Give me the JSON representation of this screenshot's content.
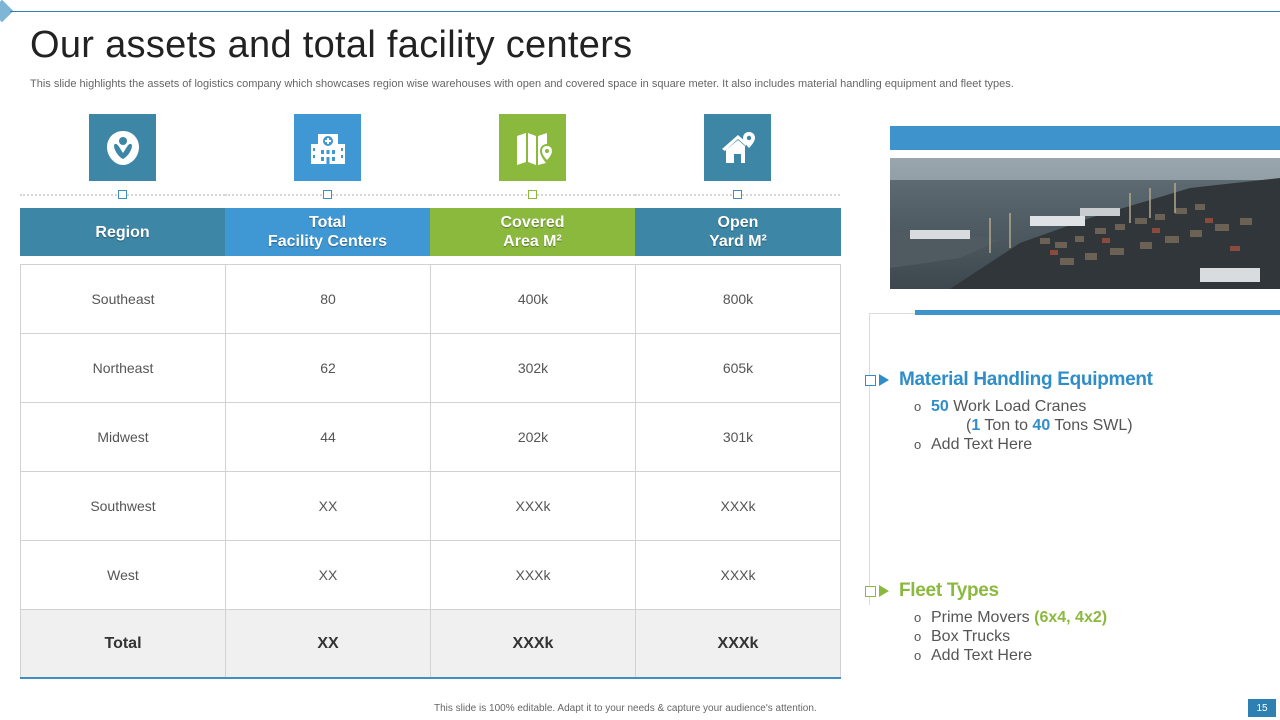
{
  "title": "Our assets and total facility centers",
  "subtitle": "This slide highlights the assets of logistics company which showcases region wise warehouses with open and covered space in square meter. It also includes material handling equipment and fleet types.",
  "colors": {
    "blue_dark": "#3d86a6",
    "blue_light": "#3f97d3",
    "green": "#8bb93e"
  },
  "icons": [
    {
      "name": "location-map-icon"
    },
    {
      "name": "hospital-building-icon"
    },
    {
      "name": "map-pin-icon"
    },
    {
      "name": "home-location-icon"
    }
  ],
  "table": {
    "headers": [
      "Region",
      "Total\nFacility Centers",
      "Covered\nArea M²",
      "Open\nYard M²"
    ],
    "rows": [
      [
        "Southeast",
        "80",
        "400k",
        "800k"
      ],
      [
        "Northeast",
        "62",
        "302k",
        "605k"
      ],
      [
        "Midwest",
        "44",
        "202k",
        "301k"
      ],
      [
        "Southwest",
        "XX",
        "XXXk",
        "XXXk"
      ],
      [
        "West",
        "XX",
        "XXXk",
        "XXXk"
      ]
    ],
    "total": [
      "Total",
      "XX",
      "XXXk",
      "XXXk"
    ]
  },
  "material": {
    "heading": "Material Handling Equipment",
    "b1_num": "50",
    "b1_text": " Work Load Cranes",
    "b1_paren_open": "(",
    "b1_num2": "1",
    "b1_mid": " Ton to ",
    "b1_num3": "40",
    "b1_end": " Tons  SWL)",
    "b2": "Add Text Here"
  },
  "fleet": {
    "heading": "Fleet Types",
    "b1_text": "Prime Movers ",
    "b1_hl": "(6x4, 4x2)",
    "b2": "Box Trucks",
    "b3": "Add Text Here"
  },
  "footer": "This slide is 100% editable.  Adapt it to your needs & capture your audience's attention.",
  "page_number": "15"
}
